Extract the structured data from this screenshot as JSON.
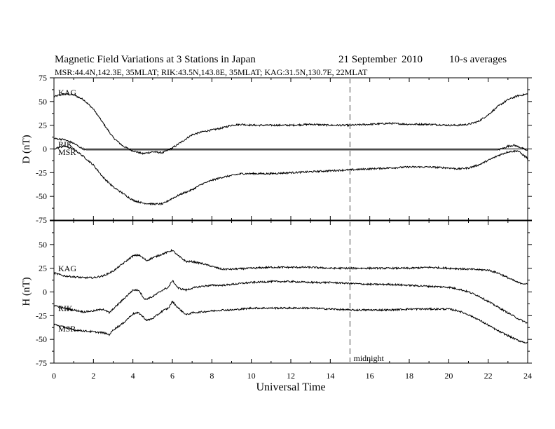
{
  "header": {
    "title": "Magnetic Field Variations at 3 Stations in Japan",
    "date_day_month": "21 September",
    "date_year": "2010",
    "averaging": "10-s averages",
    "stations_line": "MSR:44.4N,142.3E, 35MLAT;  RIK:43.5N,143.8E, 35MLAT;  KAG:31.5N,130.7E, 22MLAT"
  },
  "chart_data": [
    {
      "type": "line",
      "panel": "top",
      "ylabel": "D (nT)",
      "ylim": [
        -75,
        75
      ],
      "yticks": [
        -75,
        -50,
        -25,
        0,
        25,
        50,
        75
      ],
      "xlim": [
        0,
        24
      ],
      "baseline": 0,
      "series": [
        {
          "name": "KAG",
          "x": [
            0,
            0.5,
            1,
            1.5,
            2,
            2.5,
            3,
            3.5,
            4,
            4.5,
            5,
            5.5,
            6,
            6.5,
            7,
            7.5,
            8,
            8.5,
            9,
            9.5,
            10,
            11,
            12,
            13,
            14,
            15,
            16,
            17,
            18,
            19,
            20,
            20.5,
            21,
            21.5,
            22,
            22.5,
            23,
            23.5,
            24
          ],
          "values": [
            55,
            58,
            57,
            52,
            42,
            27,
            12,
            3,
            -2,
            -5,
            -3,
            -4,
            1,
            8,
            15,
            18,
            20,
            22,
            25,
            26,
            25,
            25,
            25,
            26,
            25,
            25,
            26,
            27,
            26,
            26,
            25,
            25,
            26,
            29,
            36,
            45,
            52,
            56,
            58
          ]
        },
        {
          "name": "RIK",
          "x": [
            0,
            0.5,
            1,
            1.3,
            1.6,
            2,
            4,
            6,
            8,
            10,
            12,
            14,
            15,
            16,
            18,
            20,
            22,
            22.5,
            22.8,
            23,
            23.3,
            23.6,
            24
          ],
          "values": [
            11,
            10,
            6,
            2,
            -1,
            -1,
            -1,
            -1,
            -1,
            -1,
            -1,
            -1,
            -1,
            -1,
            -1,
            -1,
            -1,
            -1,
            1,
            3,
            4,
            2,
            -2
          ]
        },
        {
          "name": "MSR",
          "x": [
            0,
            0.5,
            1,
            1.5,
            2,
            2.5,
            3,
            3.5,
            4,
            4.5,
            5,
            5.5,
            6,
            6.5,
            7,
            7.5,
            8,
            8.5,
            9,
            9.5,
            10,
            11,
            12,
            13,
            14,
            15,
            16,
            17,
            18,
            19,
            20,
            20.5,
            21,
            21.5,
            22,
            22.5,
            23,
            23.5,
            24
          ],
          "values": [
            0,
            3,
            0,
            -8,
            -17,
            -30,
            -40,
            -47,
            -54,
            -57,
            -58,
            -58,
            -52,
            -47,
            -43,
            -37,
            -33,
            -30,
            -28,
            -26,
            -26,
            -26,
            -25,
            -24,
            -23,
            -22,
            -21,
            -20,
            -19,
            -19,
            -20,
            -21,
            -20,
            -17,
            -12,
            -7,
            -3,
            -2,
            -10
          ]
        }
      ]
    },
    {
      "type": "line",
      "panel": "bottom",
      "ylabel": "H (nT)",
      "ylim": [
        -75,
        75
      ],
      "yticks": [
        -75,
        -50,
        -25,
        0,
        25,
        50,
        75
      ],
      "xlim": [
        0,
        24
      ],
      "xticks": [
        0,
        2,
        4,
        6,
        8,
        10,
        12,
        14,
        16,
        18,
        20,
        22,
        24
      ],
      "xlabel": "Universal Time",
      "marker": {
        "x": 15,
        "label": "midnight"
      },
      "series": [
        {
          "name": "KAG",
          "x": [
            0,
            0.5,
            1,
            1.5,
            2,
            2.5,
            3,
            3.5,
            4,
            4.3,
            4.7,
            5,
            5.5,
            6,
            6.3,
            6.7,
            7,
            7.5,
            8,
            8.5,
            9,
            10,
            11,
            12,
            13,
            14,
            15,
            16,
            17,
            18,
            19,
            20,
            21,
            22,
            22.5,
            23,
            23.5,
            24
          ],
          "values": [
            20,
            17,
            16,
            15,
            15,
            17,
            22,
            30,
            38,
            39,
            33,
            36,
            40,
            44,
            38,
            32,
            32,
            30,
            27,
            24,
            24,
            25,
            26,
            26,
            26,
            25,
            25,
            25,
            25,
            25,
            26,
            25,
            24,
            23,
            20,
            15,
            10,
            8
          ]
        },
        {
          "name": "RIK",
          "x": [
            0,
            0.5,
            1,
            1.5,
            2,
            2.5,
            2.8,
            3,
            3.5,
            4,
            4.3,
            4.6,
            5,
            5.5,
            5.8,
            6,
            6.3,
            6.7,
            7,
            7.5,
            8,
            8.5,
            9,
            10,
            11,
            12,
            13,
            14,
            15,
            16,
            17,
            18,
            19,
            20,
            20.5,
            21,
            21.5,
            22,
            22.5,
            23,
            23.5,
            24
          ],
          "values": [
            -14,
            -17,
            -19,
            -21,
            -20,
            -18,
            -22,
            -18,
            -8,
            2,
            2,
            -8,
            -5,
            2,
            5,
            12,
            4,
            2,
            4,
            6,
            7,
            7,
            8,
            10,
            11,
            11,
            10,
            10,
            9,
            8,
            8,
            7,
            6,
            5,
            3,
            0,
            -4,
            -10,
            -16,
            -22,
            -28,
            -33
          ]
        },
        {
          "name": "MSR",
          "x": [
            0,
            0.5,
            1,
            1.5,
            2,
            2.5,
            2.8,
            3,
            3.5,
            4,
            4.3,
            4.7,
            5,
            5.5,
            5.8,
            6,
            6.3,
            6.7,
            7,
            7.5,
            8,
            8.5,
            9,
            10,
            11,
            12,
            13,
            14,
            15,
            16,
            17,
            18,
            19,
            20,
            20.5,
            21,
            21.5,
            22,
            22.5,
            23,
            23.5,
            24
          ],
          "values": [
            -34,
            -37,
            -40,
            -41,
            -42,
            -43,
            -45,
            -40,
            -33,
            -23,
            -22,
            -30,
            -28,
            -20,
            -17,
            -10,
            -17,
            -24,
            -22,
            -21,
            -20,
            -19,
            -19,
            -17,
            -17,
            -17,
            -17,
            -18,
            -19,
            -19,
            -19,
            -18,
            -18,
            -18,
            -20,
            -24,
            -29,
            -35,
            -41,
            -46,
            -51,
            -54
          ]
        }
      ]
    }
  ]
}
